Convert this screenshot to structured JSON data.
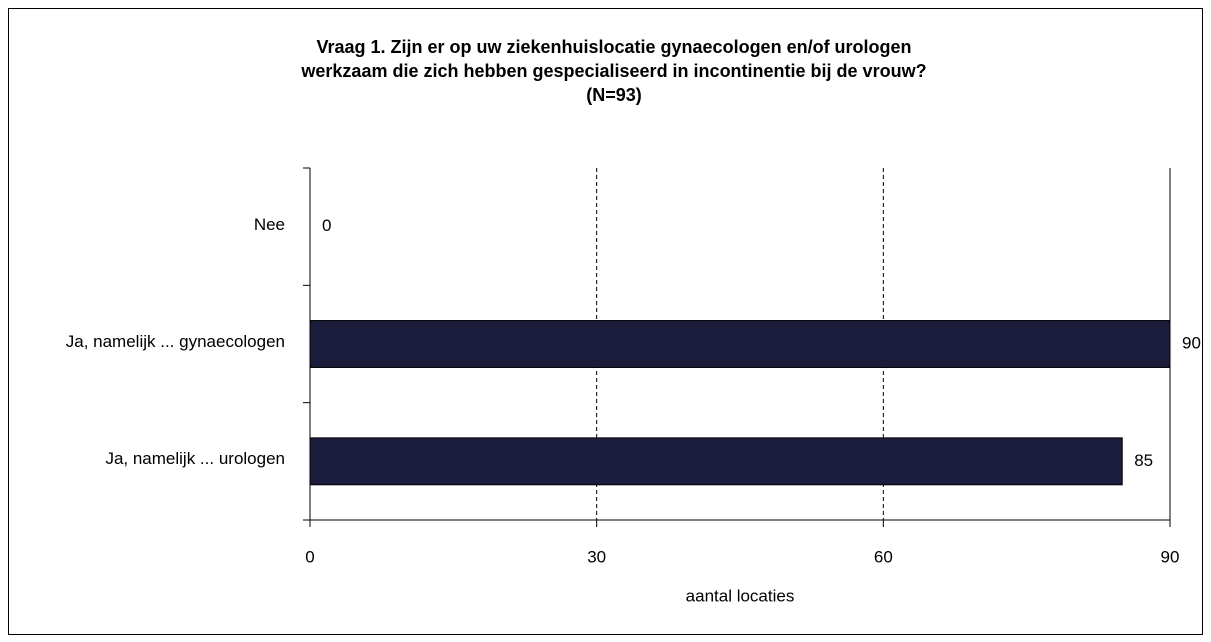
{
  "chart_data": {
    "type": "bar",
    "orientation": "horizontal",
    "title": [
      "Vraag 1. Zijn er op uw ziekenhuislocatie gynaecologen en/of urologen",
      "werkzaam die zich hebben gespecialiseerd in incontinentie bij de vrouw?",
      "(N=93)"
    ],
    "categories": [
      "Nee",
      "Ja, namelijk ... gynaecologen",
      "Ja, namelijk ... urologen"
    ],
    "values": [
      0,
      90,
      85
    ],
    "color": "#1c1c3c",
    "xlim": [
      0,
      90
    ],
    "xticks": [
      0,
      30,
      60,
      90
    ],
    "xlabel": "aantal locaties",
    "grid": true
  }
}
